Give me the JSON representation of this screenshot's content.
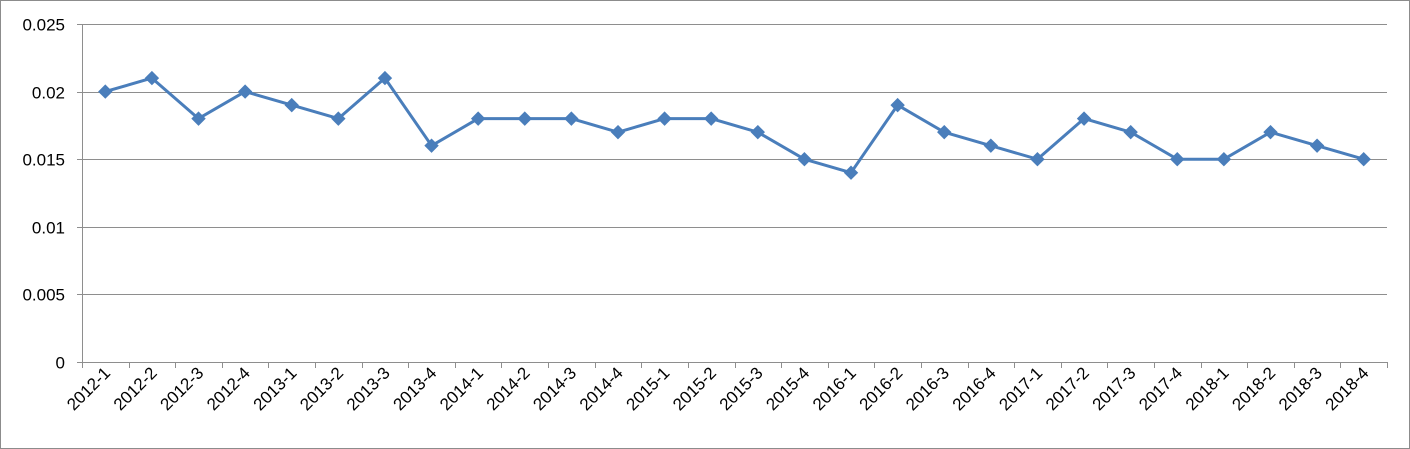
{
  "chart_data": {
    "type": "line",
    "title": "",
    "xlabel": "",
    "ylabel": "",
    "categories": [
      "2012-1",
      "2012-2",
      "2012-3",
      "2012-4",
      "2013-1",
      "2013-2",
      "2013-3",
      "2013-4",
      "2014-1",
      "2014-2",
      "2014-3",
      "2014-4",
      "2015-1",
      "2015-2",
      "2015-3",
      "2015-4",
      "2016-1",
      "2016-2",
      "2016-3",
      "2016-4",
      "2017-1",
      "2017-2",
      "2017-3",
      "2017-4",
      "2018-1",
      "2018-2",
      "2018-3",
      "2018-4"
    ],
    "series": [
      {
        "values": [
          0.02,
          0.021,
          0.018,
          0.02,
          0.019,
          0.018,
          0.021,
          0.016,
          0.018,
          0.018,
          0.018,
          0.017,
          0.018,
          0.018,
          0.017,
          0.015,
          0.014,
          0.019,
          0.017,
          0.016,
          0.015,
          0.018,
          0.017,
          0.015,
          0.015,
          0.017,
          0.016,
          0.015
        ],
        "color": "#4a7ebb",
        "marker": "diamond"
      }
    ],
    "ylim": [
      0,
      0.025
    ],
    "yticks": [
      0,
      0.005,
      0.01,
      0.015,
      0.02,
      0.025
    ],
    "ytick_labels": [
      "0",
      "0.005",
      "0.01",
      "0.015",
      "0.02",
      "0.025"
    ],
    "grid": true,
    "legend": "none"
  }
}
